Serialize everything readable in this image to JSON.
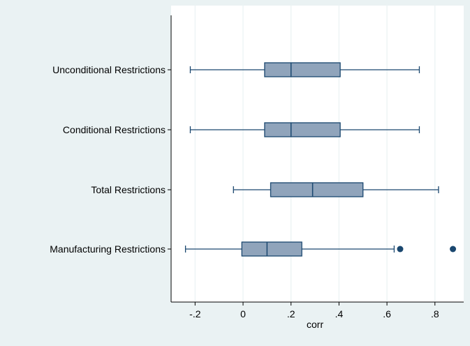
{
  "colors": {
    "outer_background": "#eaf2f3",
    "plot_background": "#ffffff",
    "box_fill": "#90a4bb",
    "box_stroke": "#1a476f",
    "outlier": "#1a476f",
    "grid": "#eaf2f3",
    "axis": "#000000"
  },
  "chart_data": {
    "type": "boxplot",
    "orientation": "horizontal",
    "xlabel": "corr",
    "xlim": [
      -0.3,
      0.92
    ],
    "xticks": [
      -0.2,
      0,
      0.2,
      0.4,
      0.6,
      0.8
    ],
    "xtick_labels": [
      "-.2",
      "0",
      ".2",
      ".4",
      ".6",
      ".8"
    ],
    "grid": true,
    "categories": [
      "Unconditional Restrictions",
      "Conditional Restrictions",
      "Total Restrictions",
      "Manufacturing Restrictions"
    ],
    "boxes": [
      {
        "category": "Unconditional Restrictions",
        "whisker_low": -0.22,
        "q1": 0.09,
        "median": 0.2,
        "q3": 0.405,
        "whisker_high": 0.735,
        "outliers": []
      },
      {
        "category": "Conditional Restrictions",
        "whisker_low": -0.22,
        "q1": 0.09,
        "median": 0.2,
        "q3": 0.405,
        "whisker_high": 0.735,
        "outliers": []
      },
      {
        "category": "Total Restrictions",
        "whisker_low": -0.04,
        "q1": 0.115,
        "median": 0.29,
        "q3": 0.5,
        "whisker_high": 0.815,
        "outliers": []
      },
      {
        "category": "Manufacturing Restrictions",
        "whisker_low": -0.24,
        "q1": -0.005,
        "median": 0.1,
        "q3": 0.245,
        "whisker_high": 0.63,
        "outliers": [
          0.655,
          0.875
        ]
      }
    ]
  }
}
